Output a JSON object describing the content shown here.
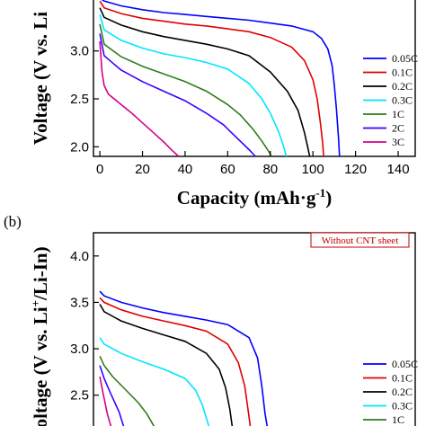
{
  "colors": {
    "c005": "#0000ff",
    "c01": "#e00000",
    "c02": "#000000",
    "c03": "#00e5ff",
    "c1": "#2e7d1a",
    "c2": "#3a00ff",
    "c3": "#d4008a"
  },
  "chart_data": [
    {
      "type": "line",
      "panel_label": "",
      "xlabel_main": "Capacity (mAh·g",
      "xlabel_sup": "-1",
      "xlabel_end": ")",
      "ylabel_main": "Voltage (V vs. Li",
      "xlim": [
        -3,
        148
      ],
      "ylim": [
        1.9,
        3.55
      ],
      "xticks": [
        "0",
        "20",
        "40",
        "60",
        "80",
        "100",
        "120",
        "140"
      ],
      "yticks": [
        "2.0",
        "2.5",
        "3.0"
      ],
      "legend": [
        "0.05C",
        "0.1C",
        "0.2C",
        "0.3C",
        "1C",
        "2C",
        "3C"
      ],
      "series": [
        {
          "name": "0.05C",
          "color_key": "c005",
          "x": [
            0,
            2,
            10,
            20,
            30,
            40,
            50,
            60,
            70,
            80,
            90,
            100,
            104,
            107,
            109,
            110,
            111,
            112,
            112.5
          ],
          "y": [
            3.55,
            3.52,
            3.47,
            3.43,
            3.4,
            3.38,
            3.36,
            3.34,
            3.32,
            3.29,
            3.26,
            3.2,
            3.13,
            3.02,
            2.85,
            2.65,
            2.4,
            2.1,
            1.9
          ]
        },
        {
          "name": "0.1C",
          "color_key": "c01",
          "x": [
            0,
            2,
            10,
            20,
            30,
            40,
            50,
            60,
            70,
            80,
            90,
            96,
            100,
            102,
            103.5,
            104.5,
            105
          ],
          "y": [
            3.52,
            3.45,
            3.39,
            3.34,
            3.31,
            3.28,
            3.26,
            3.23,
            3.2,
            3.14,
            3.04,
            2.9,
            2.7,
            2.5,
            2.25,
            2.05,
            1.9
          ]
        },
        {
          "name": "0.2C",
          "color_key": "c02",
          "x": [
            0,
            2,
            10,
            20,
            30,
            40,
            50,
            60,
            70,
            80,
            88,
            93,
            96,
            97.5,
            98.5
          ],
          "y": [
            3.45,
            3.35,
            3.27,
            3.2,
            3.15,
            3.11,
            3.07,
            3.02,
            2.95,
            2.78,
            2.58,
            2.38,
            2.15,
            2.0,
            1.9
          ]
        },
        {
          "name": "0.3C",
          "color_key": "c03",
          "x": [
            0,
            2,
            10,
            20,
            30,
            40,
            50,
            60,
            70,
            76,
            80,
            84,
            86,
            87.5
          ],
          "y": [
            3.38,
            3.22,
            3.11,
            3.03,
            2.97,
            2.93,
            2.88,
            2.81,
            2.66,
            2.5,
            2.35,
            2.15,
            2.02,
            1.9
          ]
        },
        {
          "name": "1C",
          "color_key": "c1",
          "x": [
            0,
            2,
            10,
            20,
            30,
            40,
            50,
            60,
            66,
            72,
            76,
            79,
            80.5
          ],
          "y": [
            3.28,
            3.07,
            2.94,
            2.84,
            2.76,
            2.68,
            2.58,
            2.44,
            2.33,
            2.18,
            2.06,
            1.96,
            1.9
          ]
        },
        {
          "name": "2C",
          "color_key": "c2",
          "x": [
            0,
            2,
            10,
            20,
            30,
            40,
            50,
            58,
            64,
            70,
            73
          ],
          "y": [
            3.18,
            2.95,
            2.8,
            2.68,
            2.58,
            2.48,
            2.35,
            2.23,
            2.1,
            1.97,
            1.9
          ]
        },
        {
          "name": "3C",
          "color_key": "c3",
          "x": [
            0,
            1,
            2,
            4,
            10,
            15,
            20,
            25,
            30,
            34,
            37
          ],
          "y": [
            3.1,
            2.78,
            2.64,
            2.55,
            2.44,
            2.35,
            2.25,
            2.15,
            2.05,
            1.96,
            1.9
          ]
        }
      ]
    },
    {
      "type": "line",
      "panel_label": "(b)",
      "annotation": "Without CNT sheet",
      "ylabel_main": "Voltage (V vs. Li",
      "ylabel_sup": "+",
      "ylabel_end": "/Li-In)",
      "xlim": [
        -3,
        148
      ],
      "ylim": [
        2.1,
        4.25
      ],
      "yticks": [
        "2.5",
        "3.0",
        "3.5",
        "4.0"
      ],
      "legend": [
        "0.05C",
        "0.1C",
        "0.2C",
        "0.3C",
        "1C"
      ],
      "series": [
        {
          "name": "0.05C",
          "color_key": "c005",
          "x": [
            0,
            2,
            10,
            20,
            30,
            40,
            50,
            60,
            70,
            74,
            76,
            77.5,
            79
          ],
          "y": [
            3.62,
            3.57,
            3.5,
            3.44,
            3.39,
            3.35,
            3.31,
            3.26,
            3.12,
            2.9,
            2.6,
            2.3,
            2.1
          ]
        },
        {
          "name": "0.1C",
          "color_key": "c01",
          "x": [
            0,
            2,
            10,
            20,
            30,
            40,
            50,
            60,
            65,
            68,
            69.5,
            71
          ],
          "y": [
            3.55,
            3.5,
            3.42,
            3.35,
            3.3,
            3.25,
            3.19,
            3.05,
            2.85,
            2.6,
            2.35,
            2.1
          ]
        },
        {
          "name": "0.2C",
          "color_key": "c02",
          "x": [
            0,
            2,
            10,
            20,
            30,
            40,
            50,
            56,
            59,
            61,
            62.5
          ],
          "y": [
            3.48,
            3.4,
            3.3,
            3.22,
            3.15,
            3.08,
            2.95,
            2.78,
            2.58,
            2.35,
            2.1
          ]
        },
        {
          "name": "0.3C",
          "color_key": "c03",
          "x": [
            0,
            2,
            10,
            20,
            30,
            40,
            45,
            48,
            50,
            52
          ],
          "y": [
            3.12,
            3.05,
            2.95,
            2.86,
            2.78,
            2.68,
            2.55,
            2.4,
            2.25,
            2.1
          ]
        },
        {
          "name": "1C",
          "color_key": "c1",
          "x": [
            0,
            2,
            6,
            12,
            18,
            22,
            25,
            27
          ],
          "y": [
            2.92,
            2.82,
            2.7,
            2.56,
            2.42,
            2.3,
            2.18,
            2.1
          ]
        },
        {
          "name": "",
          "color_key": "c2",
          "x": [
            0,
            2,
            5,
            9,
            12
          ],
          "y": [
            2.82,
            2.68,
            2.52,
            2.32,
            2.1
          ]
        },
        {
          "name": "",
          "color_key": "c3",
          "x": [
            0,
            1.5,
            3.5,
            6
          ],
          "y": [
            2.7,
            2.52,
            2.3,
            2.1
          ]
        }
      ]
    }
  ]
}
